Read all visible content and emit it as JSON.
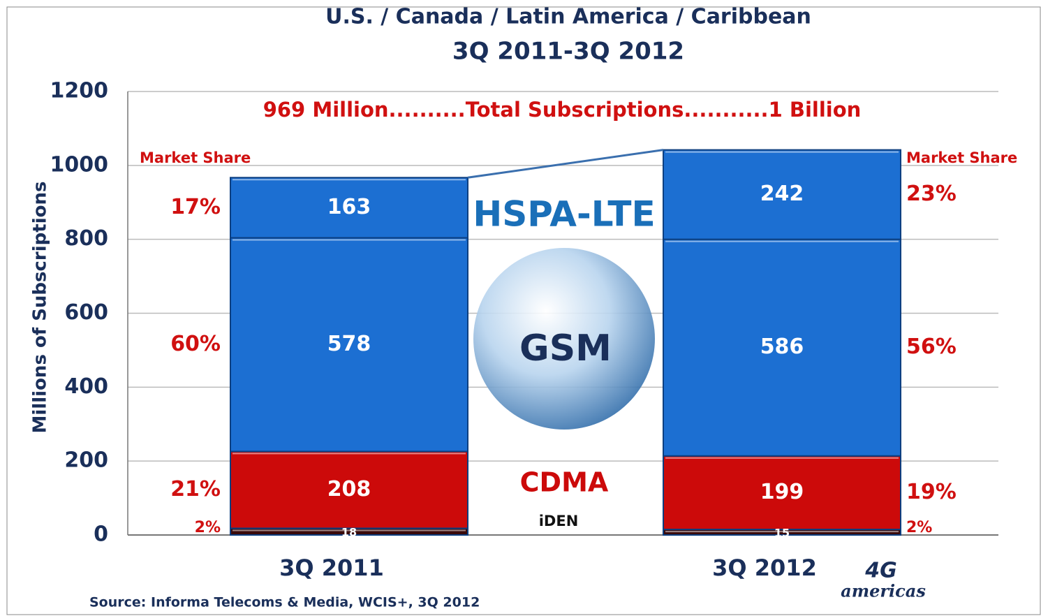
{
  "chart_data": {
    "type": "stacked_bar",
    "title": "U.S. / Canada / Latin America / Caribbean",
    "subtitle": "3Q 2011-3Q 2012",
    "y_label": "Millions of Subscriptions",
    "total_annotation": "969 Million..........Total Subscriptions...........1 Billion",
    "share_heading": "Market Share",
    "source": "Source: Informa Telecoms & Media, WCIS+, 3Q 2012",
    "logo": [
      "4G",
      "americas"
    ],
    "categories": [
      "3Q 2011",
      "3Q 2012"
    ],
    "series": [
      {
        "name": "iDEN",
        "color": "#3a0a0a",
        "values": [
          18,
          15
        ],
        "share_labels": [
          "2%",
          "2%"
        ]
      },
      {
        "name": "CDMA",
        "color": "#cc0a0a",
        "values": [
          208,
          199
        ],
        "share_labels": [
          "21%",
          "19%"
        ]
      },
      {
        "name": "GSM",
        "color": "#1c6fd2",
        "values": [
          578,
          586
        ],
        "share_labels": [
          "60%",
          "56%"
        ]
      },
      {
        "name": "HSPA-LTE",
        "color": "#1c6fd2",
        "values": [
          163,
          242
        ],
        "share_labels": [
          "17%",
          "23%"
        ]
      }
    ],
    "ylim": [
      0,
      1200
    ],
    "yticks": [
      0,
      200,
      400,
      600,
      800,
      1000,
      1200
    ],
    "grid": true
  }
}
